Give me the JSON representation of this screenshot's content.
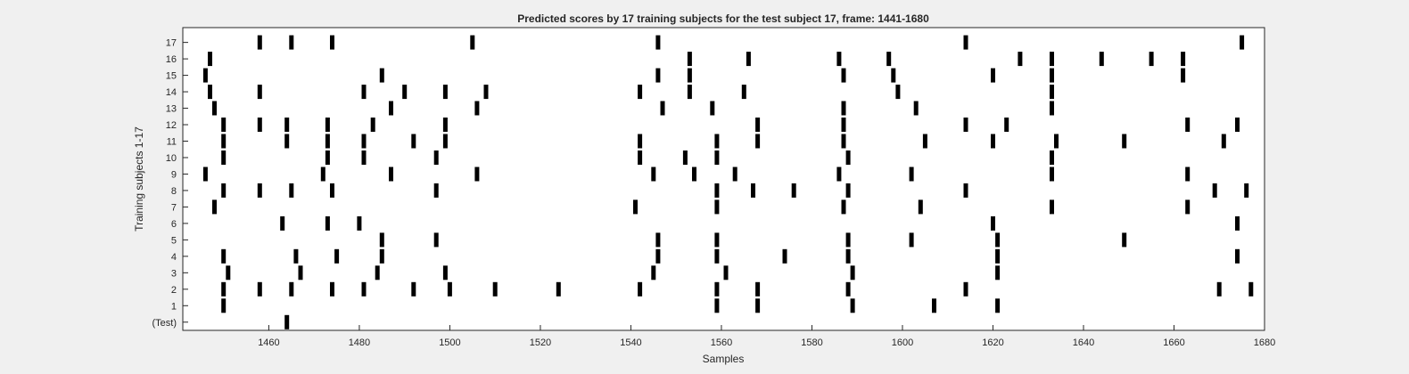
{
  "chart_data": {
    "type": "scatter",
    "title": "Predicted scores by 17 training subjects for the test subject 17, frame: 1441-1680",
    "xlabel": "Samples",
    "ylabel": "Training subjects 1-17",
    "xlim": [
      1441,
      1680
    ],
    "x_ticks": [
      1460,
      1480,
      1500,
      1520,
      1540,
      1560,
      1580,
      1600,
      1620,
      1640,
      1660,
      1680
    ],
    "y_categories": [
      "(Test)",
      "1",
      "2",
      "3",
      "4",
      "5",
      "6",
      "7",
      "8",
      "9",
      "10",
      "11",
      "12",
      "13",
      "14",
      "15",
      "16",
      "17"
    ],
    "grid": false,
    "colors": {
      "background": "#f0f0f0",
      "plot_background": "#ffffff",
      "marker": "#000000",
      "axis": "#262626"
    },
    "series": [
      {
        "row": 0,
        "x": [
          1464
        ]
      },
      {
        "row": 1,
        "x": [
          1450,
          1559,
          1568,
          1589,
          1607,
          1621
        ]
      },
      {
        "row": 2,
        "x": [
          1450,
          1458,
          1465,
          1474,
          1481,
          1492,
          1500,
          1510,
          1524,
          1542,
          1559,
          1568,
          1588,
          1614,
          1670,
          1677
        ]
      },
      {
        "row": 3,
        "x": [
          1451,
          1467,
          1484,
          1499,
          1545,
          1561,
          1589,
          1621
        ]
      },
      {
        "row": 4,
        "x": [
          1450,
          1466,
          1475,
          1485,
          1546,
          1559,
          1574,
          1588,
          1621,
          1674
        ]
      },
      {
        "row": 5,
        "x": [
          1485,
          1497,
          1546,
          1559,
          1588,
          1602,
          1621,
          1649
        ]
      },
      {
        "row": 6,
        "x": [
          1463,
          1473,
          1480,
          1620,
          1674
        ]
      },
      {
        "row": 7,
        "x": [
          1448,
          1541,
          1559,
          1587,
          1604,
          1633,
          1663
        ]
      },
      {
        "row": 8,
        "x": [
          1450,
          1458,
          1465,
          1474,
          1497,
          1559,
          1567,
          1576,
          1588,
          1614,
          1669,
          1676
        ]
      },
      {
        "row": 9,
        "x": [
          1446,
          1472,
          1487,
          1506,
          1545,
          1554,
          1563,
          1586,
          1602,
          1633,
          1663
        ]
      },
      {
        "row": 10,
        "x": [
          1450,
          1473,
          1481,
          1497,
          1542,
          1552,
          1559,
          1588,
          1633
        ]
      },
      {
        "row": 11,
        "x": [
          1450,
          1464,
          1473,
          1481,
          1492,
          1499,
          1542,
          1559,
          1568,
          1587,
          1605,
          1620,
          1634,
          1649,
          1671
        ]
      },
      {
        "row": 12,
        "x": [
          1450,
          1458,
          1464,
          1473,
          1483,
          1499,
          1568,
          1587,
          1614,
          1623,
          1663,
          1674
        ]
      },
      {
        "row": 13,
        "x": [
          1448,
          1487,
          1506,
          1547,
          1558,
          1587,
          1603,
          1633
        ]
      },
      {
        "row": 14,
        "x": [
          1447,
          1458,
          1481,
          1490,
          1499,
          1508,
          1542,
          1553,
          1565,
          1599,
          1633
        ]
      },
      {
        "row": 15,
        "x": [
          1446,
          1485,
          1546,
          1553,
          1587,
          1598,
          1620,
          1633,
          1662
        ]
      },
      {
        "row": 16,
        "x": [
          1447,
          1553,
          1566,
          1586,
          1597,
          1626,
          1633,
          1644,
          1655,
          1662
        ]
      },
      {
        "row": 17,
        "x": [
          1458,
          1465,
          1474,
          1505,
          1546,
          1614,
          1675
        ]
      }
    ]
  }
}
